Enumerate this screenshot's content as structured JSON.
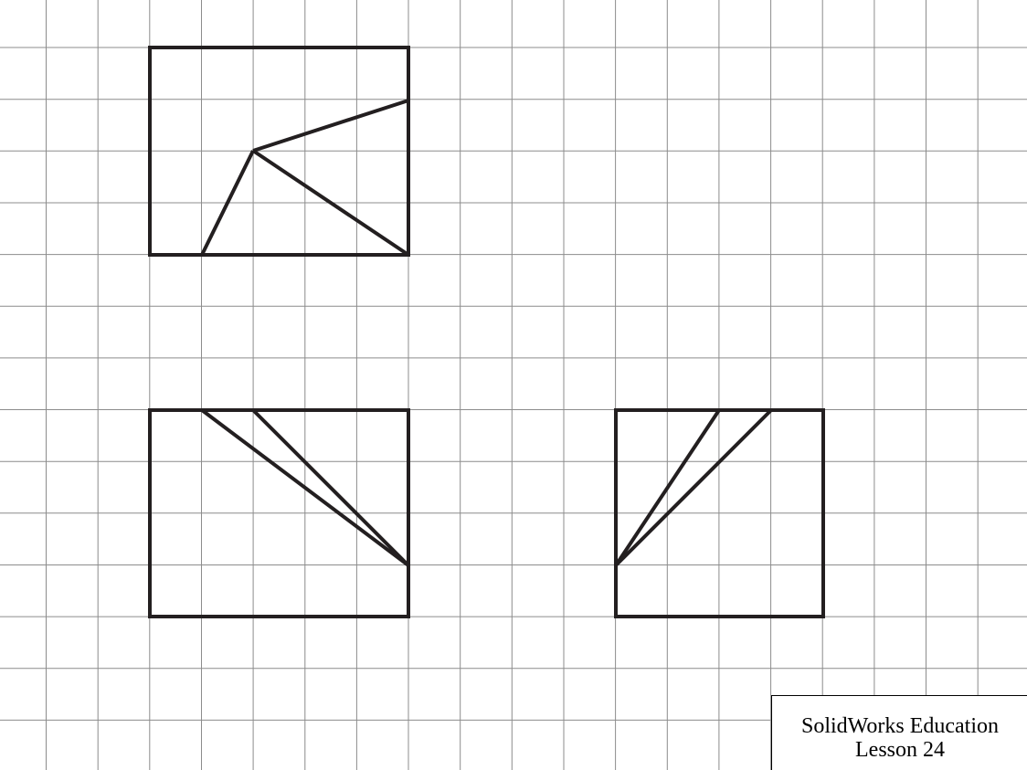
{
  "title_block": {
    "line1": "SolidWorks Education",
    "line2": "Lesson 24"
  },
  "colors": {
    "grid": "#8c8c8c",
    "outline": "#231f20",
    "background": "#ffffff"
  },
  "views": [
    {
      "name": "top-view",
      "outline": "rectangle",
      "inner_lines": 3
    },
    {
      "name": "front-view",
      "outline": "rectangle",
      "inner_lines": 2
    },
    {
      "name": "right-side-view",
      "outline": "rectangle",
      "inner_lines": 2
    }
  ]
}
